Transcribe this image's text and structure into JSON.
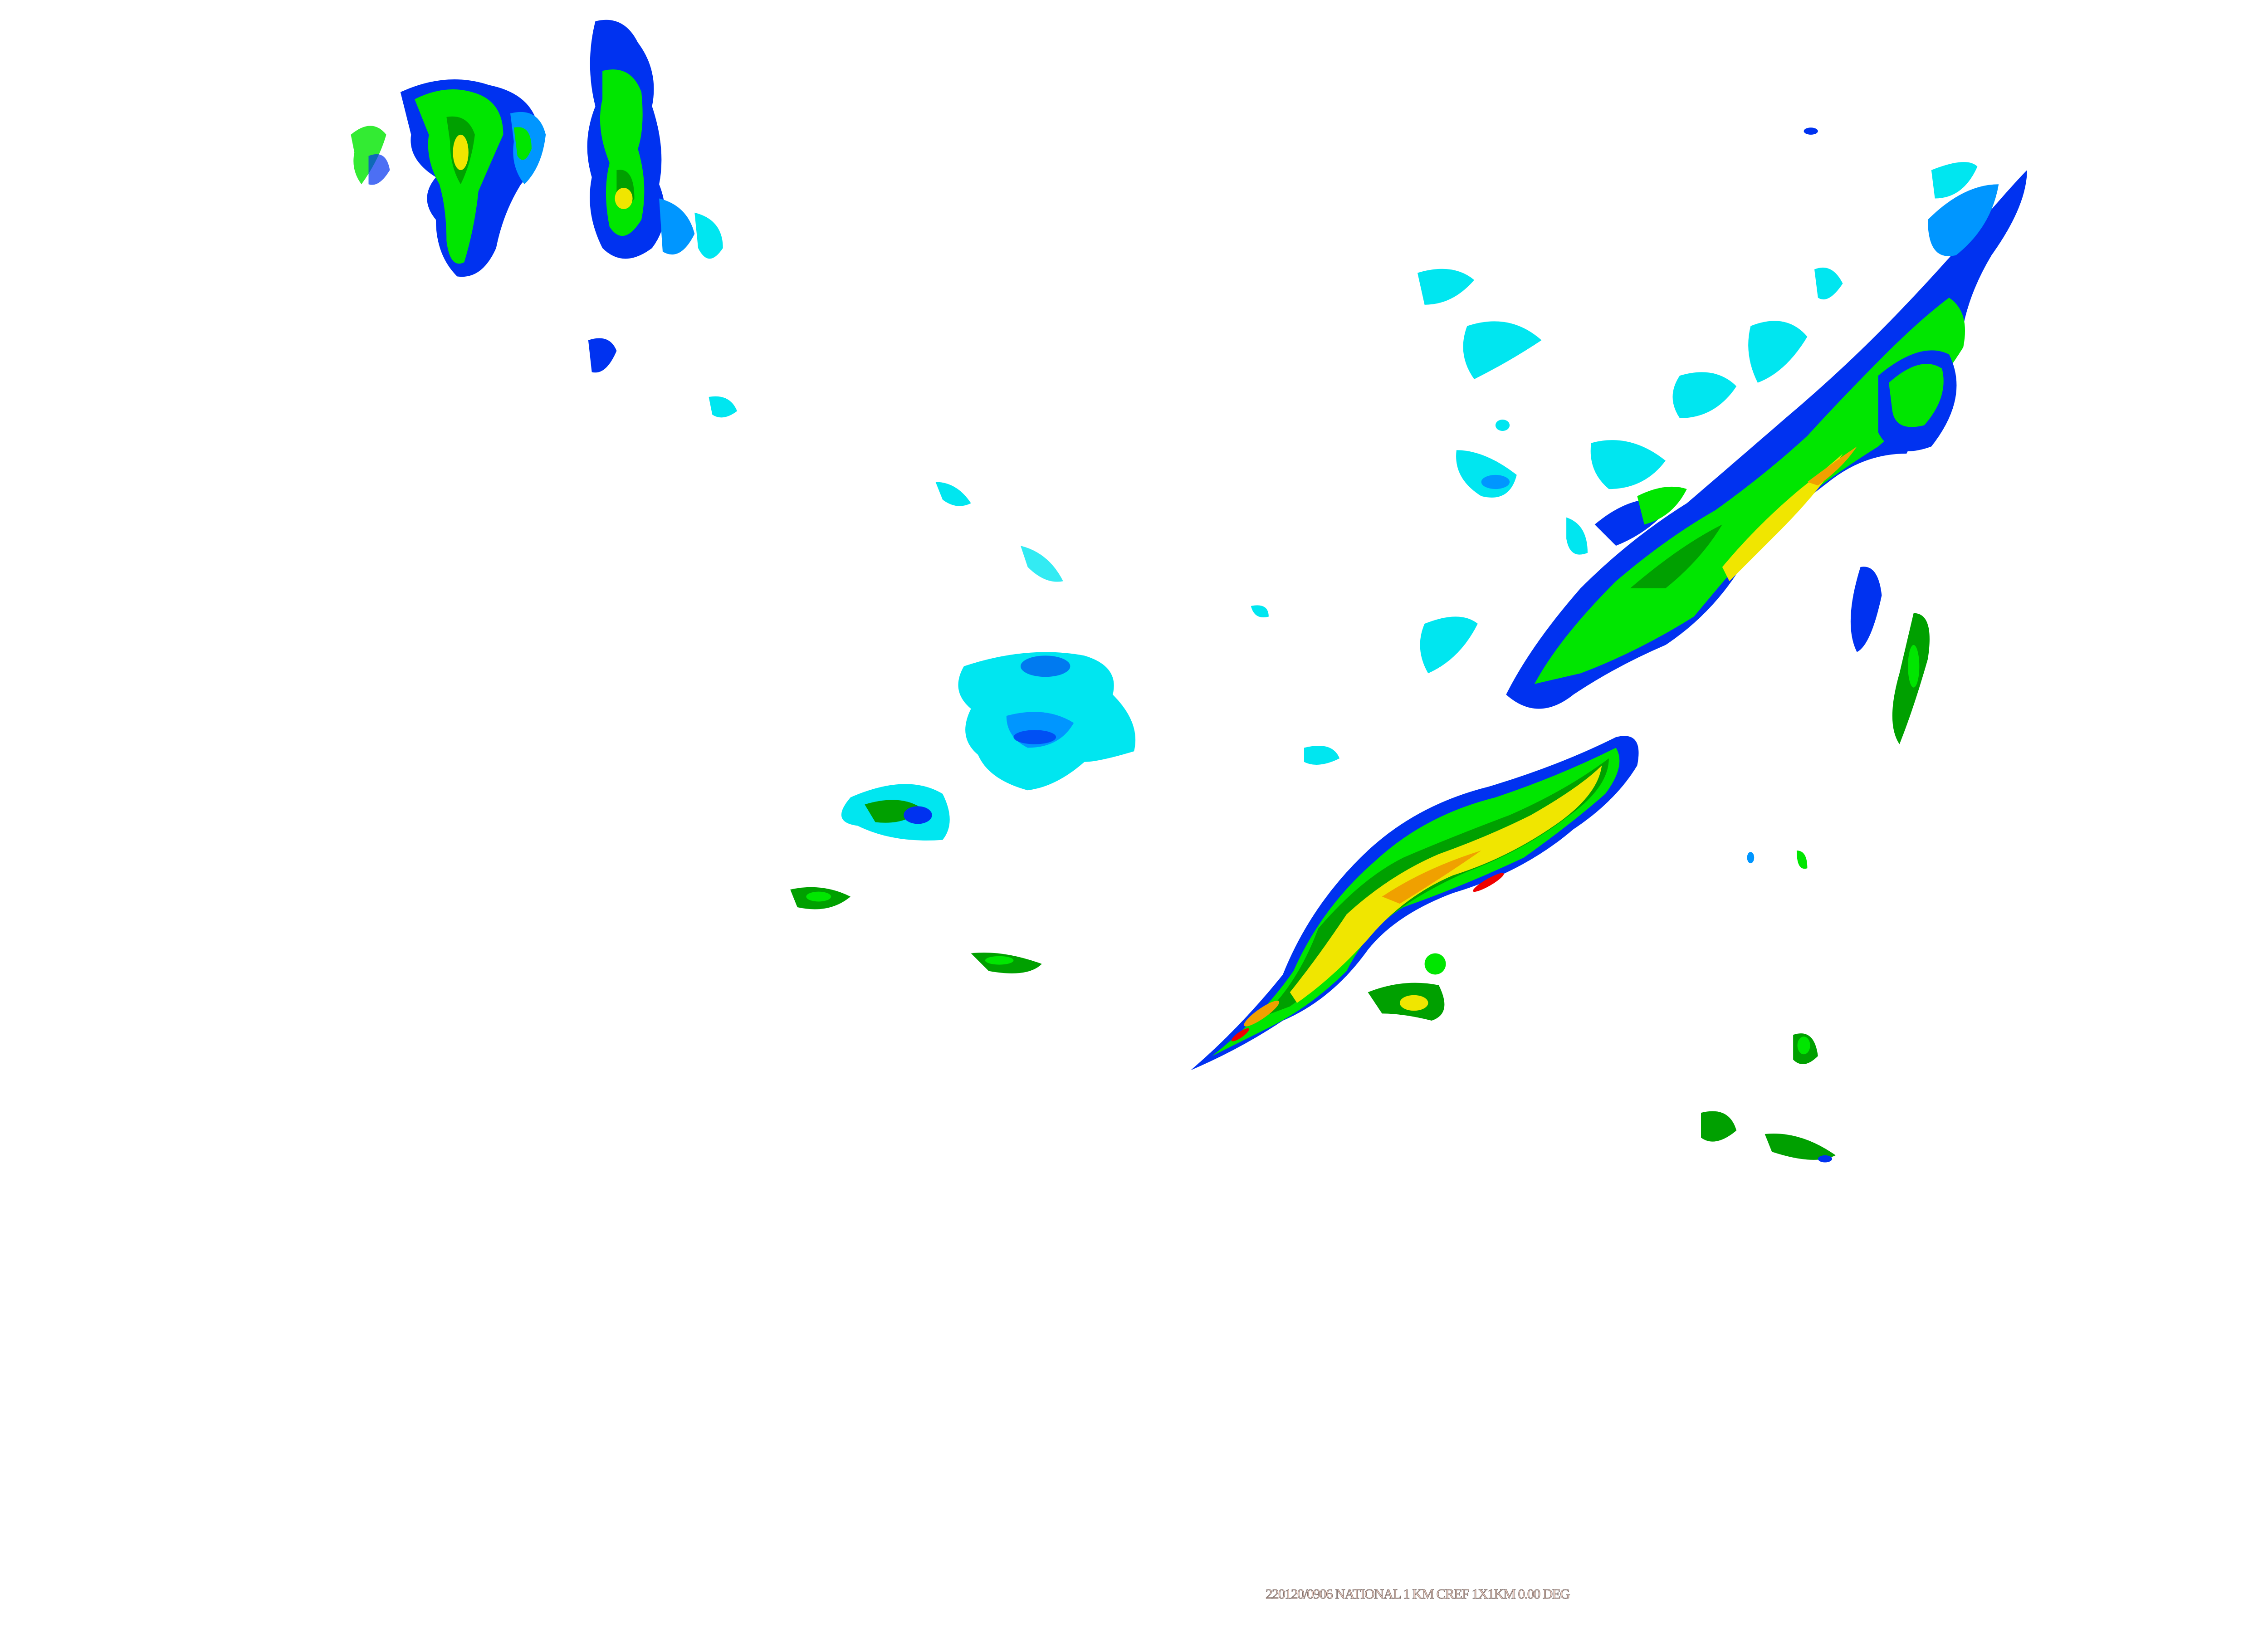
{
  "caption": "220120/0906 NATIONAL  1 KM  CREF  1X1KM 0.00 DEG",
  "product": {
    "timestamp": "220120/0906",
    "region": "NATIONAL",
    "resolution": "1 KM",
    "product_type": "CREF",
    "grid": "1X1KM",
    "elevation": "0.00 DEG"
  },
  "reflectivity_colors": {
    "light_cyan": "#00e6f0",
    "light_blue": "#0096ff",
    "blue": "#0032f0",
    "green": "#00e600",
    "dark_green": "#00a000",
    "yellow": "#f0e600",
    "orange": "#f0a000",
    "red": "#f00000"
  }
}
